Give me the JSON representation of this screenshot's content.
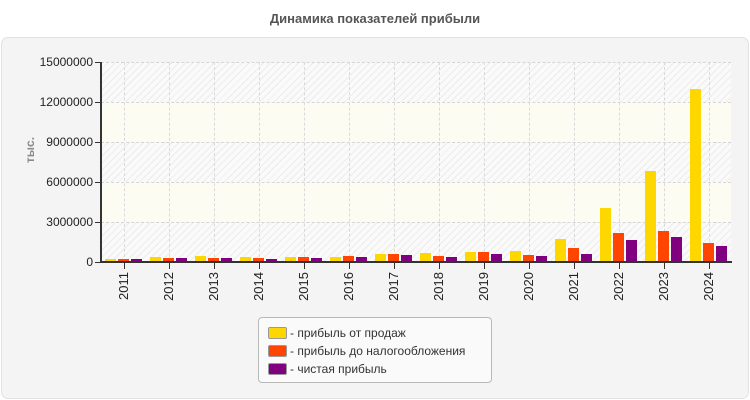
{
  "title": "Динамика показателей прибыли",
  "chart_data": {
    "type": "bar",
    "title": "Динамика показателей прибыли",
    "xlabel": "",
    "ylabel": "тыс.",
    "ylim": [
      0,
      15000000
    ],
    "yticks": [
      0,
      3000000,
      6000000,
      9000000,
      12000000,
      15000000
    ],
    "ytick_labels": [
      "0",
      "3000000",
      "6000000",
      "9000000",
      "12000000",
      "15000000"
    ],
    "grid": true,
    "legend_position": "bottom",
    "categories": [
      "2011",
      "2012",
      "2013",
      "2014",
      "2015",
      "2016",
      "2017",
      "2018",
      "2019",
      "2020",
      "2021",
      "2022",
      "2023",
      "2024"
    ],
    "series": [
      {
        "name": "прибыль от продаж",
        "color": "#ffd700",
        "values": [
          180000,
          330000,
          380000,
          330000,
          330000,
          300000,
          550000,
          600000,
          700000,
          750000,
          1650000,
          3980000,
          6750000,
          12900000
        ]
      },
      {
        "name": "прибыль до налогообложения",
        "color": "#ff4500",
        "values": [
          150000,
          250000,
          250000,
          250000,
          330000,
          400000,
          550000,
          380000,
          650000,
          450000,
          970000,
          2100000,
          2250000,
          1350000
        ]
      },
      {
        "name": "чистая прибыль",
        "color": "#800080",
        "values": [
          150000,
          250000,
          250000,
          180000,
          250000,
          300000,
          450000,
          300000,
          550000,
          380000,
          530000,
          1580000,
          1800000,
          1100000
        ]
      }
    ]
  },
  "legend": {
    "items": [
      {
        "label": "- прибыль от продаж",
        "color": "#ffd700"
      },
      {
        "label": "- прибыль до налогообложения",
        "color": "#ff4500"
      },
      {
        "label": "- чистая прибыль",
        "color": "#800080"
      }
    ]
  }
}
